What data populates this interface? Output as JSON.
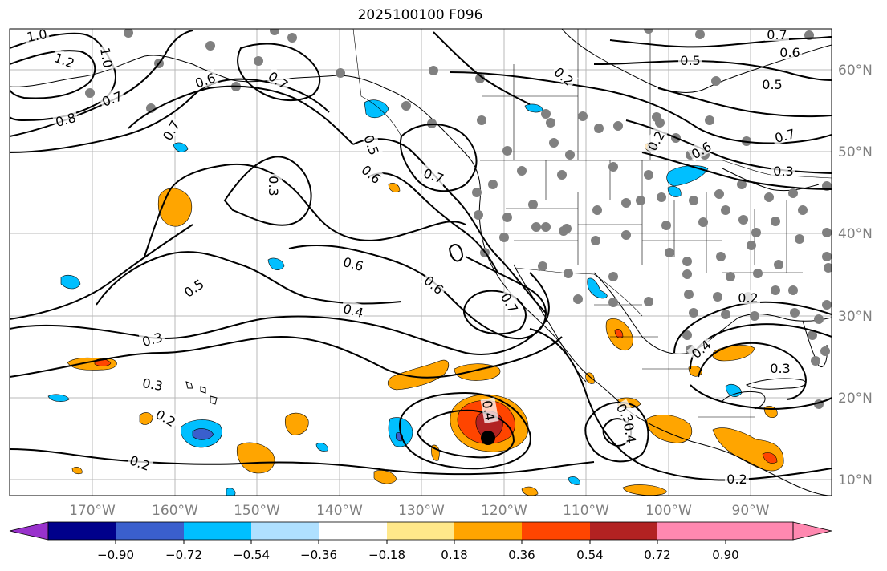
{
  "title": "2025100100 F096",
  "map": {
    "lon_labels": [
      "170°W",
      "160°W",
      "150°W",
      "140°W",
      "130°W",
      "120°W",
      "110°W",
      "100°W",
      "90°W"
    ],
    "lat_labels": [
      "60°N",
      "50°N",
      "40°N",
      "30°N",
      "20°N",
      "10°N"
    ],
    "contour_labels": [
      "1.0",
      "1.2",
      "1.0",
      "0.8",
      "0.7",
      "0.6",
      "0.7",
      "0.7",
      "0.5",
      "0.6",
      "0.3",
      "0.7",
      "0.5",
      "0.6",
      "0.4",
      "0.6",
      "0.7",
      "0.3",
      "0.3",
      "0.2",
      "0.2",
      "0.4",
      "0.3",
      "0.4",
      "0.2",
      "0.2",
      "0.7",
      "0.6",
      "0.5",
      "0.5",
      "0.7",
      "0.3",
      "0.2",
      "0.4",
      "0.3",
      "0.6",
      "0.2"
    ],
    "colors": {
      "land_line": "#000000",
      "grid": "#b0b0b0",
      "station": "#808080",
      "marker": "#000000"
    }
  },
  "colorbar": {
    "tick_labels": [
      "−0.90",
      "−0.72",
      "−0.54",
      "−0.36",
      "−0.18",
      "0.18",
      "0.36",
      "0.54",
      "0.72",
      "0.90"
    ],
    "bin_colors": [
      "#9932cc",
      "#00008b",
      "#3a5fcd",
      "#00bfff",
      "#afe0ff",
      "#ffffff",
      "#ffe88a",
      "#ffa500",
      "#ff4500",
      "#b22222",
      "#ff88b0"
    ]
  }
}
